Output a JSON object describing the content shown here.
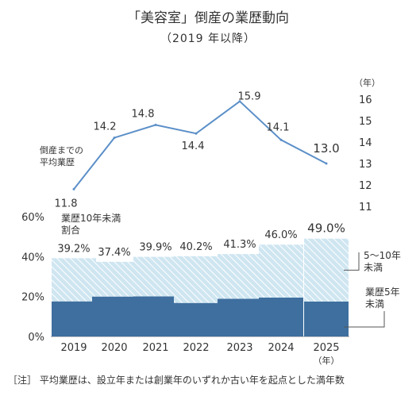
{
  "title": "「美容室」倒産の業歴動向",
  "subtitle": "（2019 年以降）",
  "footnote": "［注］ 平均業歴は、設立年または創業年のいずれか古い年を起点とした満年数",
  "colors": {
    "line": "#5b8fc8",
    "bar_bottom": "#3f6f9f",
    "bar_top_fill": "#cfe6f1",
    "bar_top_hatch": "#ffffff",
    "axis": "#999999",
    "text": "#333333"
  },
  "chart_data": [
    {
      "type": "line",
      "name": "倒産までの平均業歴",
      "label_lines": [
        "倒産までの",
        "平均業歴"
      ],
      "y_unit": "（年）",
      "categories": [
        "2019",
        "2020",
        "2021",
        "2022",
        "2023",
        "2024",
        "2025"
      ],
      "values": [
        11.8,
        14.2,
        14.8,
        14.4,
        15.9,
        14.1,
        13.0
      ],
      "value_labels": [
        "11.8",
        "14.2",
        "14.8",
        "14.4",
        "15.9",
        "14.1",
        "13.0"
      ],
      "ylim": [
        11,
        16
      ],
      "yticks": [
        "16",
        "15",
        "14",
        "13",
        "12",
        "11"
      ],
      "highlight_last": true
    },
    {
      "type": "bar",
      "stacked": true,
      "categories": [
        "2019",
        "2020",
        "2021",
        "2022",
        "2023",
        "2024",
        "2025"
      ],
      "x_unit": "（年）",
      "ylim": [
        0,
        60
      ],
      "yticks": [
        "60%",
        "40%",
        "20%",
        "0%"
      ],
      "series": [
        {
          "name": "業歴5年未満",
          "label_lines": [
            "業歴5年",
            "未満"
          ],
          "values": [
            17.6,
            20.0,
            20.1,
            16.8,
            18.9,
            19.5,
            17.5
          ]
        },
        {
          "name": "5～10年未満",
          "label_lines": [
            "5～10年",
            "未満"
          ],
          "values": [
            21.6,
            17.4,
            19.8,
            23.4,
            22.4,
            26.5,
            31.5
          ]
        }
      ],
      "total_label_title": [
        "業歴10年未満",
        "割合"
      ],
      "total_labels": [
        "39.2%",
        "37.4%",
        "39.9%",
        "40.2%",
        "41.3%",
        "46.0%",
        "49.0%"
      ],
      "totals": [
        39.2,
        37.4,
        39.9,
        40.2,
        41.3,
        46.0,
        49.0
      ]
    }
  ]
}
